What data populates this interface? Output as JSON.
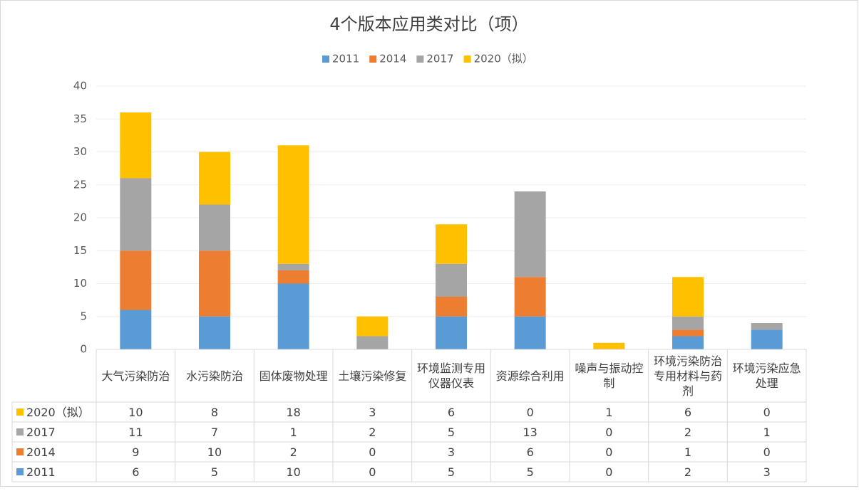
{
  "chart_data": {
    "type": "stacked_bar",
    "title": "4个版本应用类对比（项）",
    "categories": [
      "大气污染防治",
      "水污染防治",
      "固体废物处理",
      "土壤污染修复",
      "环境监测专用仪器仪表",
      "资源综合利用",
      "噪声与振动控制",
      "环境污染防治专用材料与药剂",
      "环境污染应急处理"
    ],
    "series": [
      {
        "name": "2011",
        "color": "#5b9bd5",
        "values": [
          6,
          5,
          10,
          0,
          5,
          5,
          0,
          2,
          3
        ]
      },
      {
        "name": "2014",
        "color": "#ed7d31",
        "values": [
          9,
          10,
          2,
          0,
          3,
          6,
          0,
          1,
          0
        ]
      },
      {
        "name": "2017",
        "color": "#a5a5a5",
        "values": [
          11,
          7,
          1,
          2,
          5,
          13,
          0,
          2,
          1
        ]
      },
      {
        "name": "2020（拟）",
        "color": "#ffc000",
        "values": [
          10,
          8,
          18,
          3,
          6,
          0,
          1,
          6,
          0
        ]
      }
    ],
    "ylim": [
      0,
      40
    ],
    "yticks": [
      0,
      5,
      10,
      15,
      20,
      25,
      30,
      35,
      40
    ],
    "grid": true
  }
}
